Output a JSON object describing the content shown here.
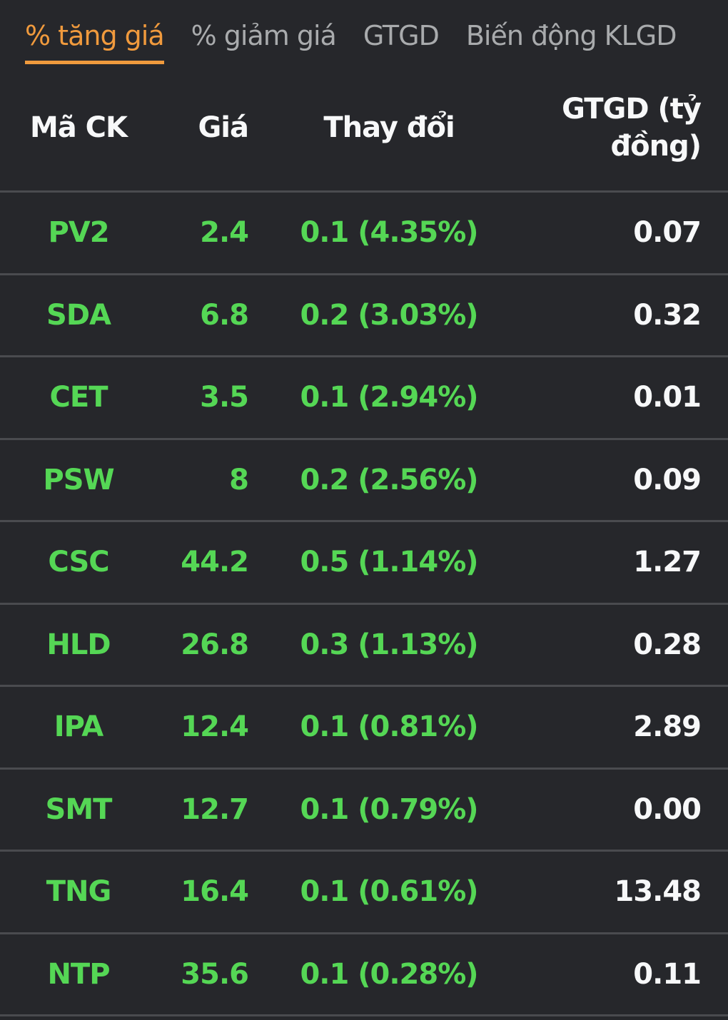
{
  "colors": {
    "background": "#26272b",
    "accent_orange": "#f09a3d",
    "gain_green": "#55d755",
    "inactive_tab_gray": "#a9abad",
    "divider_gray": "#4a4b4f",
    "text_white": "#f7f8f9"
  },
  "tabs": [
    {
      "label": "% tăng giá",
      "active": true
    },
    {
      "label": "% giảm giá",
      "active": false
    },
    {
      "label": "GTGD",
      "active": false
    },
    {
      "label": "Biến động KLGD",
      "active": false
    }
  ],
  "table": {
    "headers": {
      "code": "Mã CK",
      "price": "Giá",
      "change": "Thay đổi",
      "gtgd_line1": "GTGD (tỷ",
      "gtgd_line2": "đồng)"
    },
    "rows": [
      {
        "code": "PV2",
        "price": "2.4",
        "change": "0.1 (4.35%)",
        "gtgd": "0.07"
      },
      {
        "code": "SDA",
        "price": "6.8",
        "change": "0.2 (3.03%)",
        "gtgd": "0.32"
      },
      {
        "code": "CET",
        "price": "3.5",
        "change": "0.1 (2.94%)",
        "gtgd": "0.01"
      },
      {
        "code": "PSW",
        "price": "8",
        "change": "0.2 (2.56%)",
        "gtgd": "0.09"
      },
      {
        "code": "CSC",
        "price": "44.2",
        "change": "0.5 (1.14%)",
        "gtgd": "1.27"
      },
      {
        "code": "HLD",
        "price": "26.8",
        "change": "0.3 (1.13%)",
        "gtgd": "0.28"
      },
      {
        "code": "IPA",
        "price": "12.4",
        "change": "0.1 (0.81%)",
        "gtgd": "2.89"
      },
      {
        "code": "SMT",
        "price": "12.7",
        "change": "0.1 (0.79%)",
        "gtgd": "0.00"
      },
      {
        "code": "TNG",
        "price": "16.4",
        "change": "0.1 (0.61%)",
        "gtgd": "13.48"
      },
      {
        "code": "NTP",
        "price": "35.6",
        "change": "0.1 (0.28%)",
        "gtgd": "0.11"
      }
    ]
  }
}
